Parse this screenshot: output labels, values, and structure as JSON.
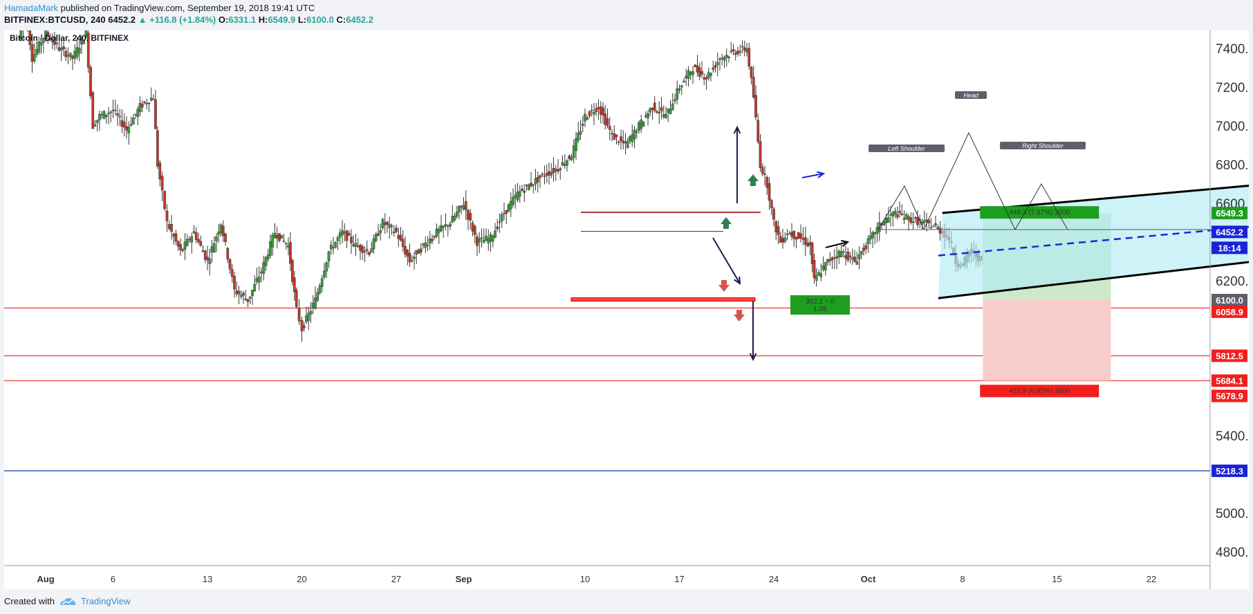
{
  "header": {
    "author": "HamadaMark",
    "published": "published on TradingView.com, September 19, 2018 19:41 UTC",
    "symbol_line": "BITFINEX:BTCUSD, 240",
    "last": "6452.2",
    "change": "▲ +116.8 (+1.84%)",
    "o_label": "O:",
    "o": "6331.1",
    "h_label": "H:",
    "h": "6549.9",
    "l_label": "L:",
    "l": "6100.0",
    "c_label": "C:",
    "c": "6452.2"
  },
  "footer": {
    "created_with": "Created with",
    "brand": "TradingView"
  },
  "chart_data": {
    "type": "candlestick",
    "title": "Bitcoin / Dollar, 240, BITFINEX",
    "ylim": [
      4700,
      7550
    ],
    "y_ticks": [
      "7400.0",
      "7200.0",
      "7000.0",
      "6800.0",
      "6600.0",
      "6200.0",
      "5400.0",
      "5000.0",
      "4800.0"
    ],
    "x_ticks": [
      "Aug",
      "6",
      "13",
      "20",
      "27",
      "Sep",
      "10",
      "17",
      "24",
      "Oct",
      "8",
      "15",
      "22"
    ],
    "x_tick_days": [
      0,
      5,
      12,
      19,
      26,
      31,
      40,
      47,
      54,
      61,
      68,
      75,
      82
    ],
    "price_path": [
      [
        -2,
        7450
      ],
      [
        -1.5,
        7600
      ],
      [
        -1,
        7350
      ],
      [
        0,
        7480
      ],
      [
        1,
        7400
      ],
      [
        2,
        7350
      ],
      [
        3,
        7480
      ],
      [
        3.5,
        7000
      ],
      [
        4,
        7050
      ],
      [
        5,
        7080
      ],
      [
        6,
        6980
      ],
      [
        7,
        7100
      ],
      [
        8,
        7150
      ],
      [
        8.3,
        6800
      ],
      [
        9,
        6500
      ],
      [
        10,
        6350
      ],
      [
        11,
        6450
      ],
      [
        12,
        6300
      ],
      [
        13,
        6500
      ],
      [
        14,
        6150
      ],
      [
        15,
        6100
      ],
      [
        16,
        6250
      ],
      [
        17,
        6450
      ],
      [
        18,
        6380
      ],
      [
        18.6,
        6050
      ],
      [
        19,
        5950
      ],
      [
        20,
        6100
      ],
      [
        21,
        6350
      ],
      [
        22,
        6450
      ],
      [
        23,
        6380
      ],
      [
        24,
        6350
      ],
      [
        25,
        6500
      ],
      [
        26,
        6450
      ],
      [
        27,
        6300
      ],
      [
        28,
        6380
      ],
      [
        29,
        6450
      ],
      [
        30,
        6500
      ],
      [
        31,
        6600
      ],
      [
        32,
        6400
      ],
      [
        33,
        6420
      ],
      [
        34,
        6550
      ],
      [
        35,
        6650
      ],
      [
        36,
        6700
      ],
      [
        37,
        6750
      ],
      [
        38,
        6780
      ],
      [
        39,
        6850
      ],
      [
        40,
        7050
      ],
      [
        41,
        7100
      ],
      [
        42,
        6950
      ],
      [
        43,
        6900
      ],
      [
        44,
        7000
      ],
      [
        45,
        7100
      ],
      [
        46,
        7050
      ],
      [
        47,
        7200
      ],
      [
        48,
        7300
      ],
      [
        49,
        7250
      ],
      [
        50,
        7350
      ],
      [
        51,
        7380
      ],
      [
        52,
        7400
      ],
      [
        52.5,
        7150
      ],
      [
        53,
        6800
      ],
      [
        53.5,
        6700
      ],
      [
        54,
        6500
      ],
      [
        54.5,
        6400
      ],
      [
        55,
        6450
      ],
      [
        56,
        6420
      ],
      [
        56.7,
        6380
      ],
      [
        57,
        6200
      ],
      [
        58,
        6300
      ],
      [
        59,
        6350
      ],
      [
        60,
        6300
      ],
      [
        61,
        6400
      ],
      [
        62,
        6500
      ],
      [
        63,
        6550
      ],
      [
        64,
        6520
      ],
      [
        65,
        6500
      ],
      [
        66,
        6480
      ],
      [
        67,
        6420
      ],
      [
        67.5,
        6300
      ],
      [
        68,
        6280
      ],
      [
        68.5,
        6350
      ],
      [
        69,
        6330
      ],
      [
        69.5,
        6300
      ],
      [
        70,
        6452.2
      ]
    ],
    "horizontal_lines": [
      {
        "price": 6058.9,
        "color": "#ef5350"
      },
      {
        "price": 5812.5,
        "color": "#ef5350"
      },
      {
        "price": 5684.1,
        "color": "#ef5350"
      },
      {
        "price": 5218.3,
        "color": "#3f51b5"
      }
    ],
    "price_labels": [
      {
        "text": "6549.3",
        "price": 6549.3,
        "color": "#1e9e1e"
      },
      {
        "text": "6452.2",
        "price": 6452.2,
        "color": "#1a23d6"
      },
      {
        "text": "18:14",
        "price": 6370,
        "color": "#1a23d6"
      },
      {
        "text": "6100.0",
        "price": 6100.0,
        "color": "#5d606b"
      },
      {
        "text": "6058.9",
        "price": 6040,
        "color": "#f21e1e"
      },
      {
        "text": "5812.5",
        "price": 5812.5,
        "color": "#f21e1e"
      },
      {
        "text": "5684.1",
        "price": 5684.1,
        "color": "#f21e1e"
      },
      {
        "text": "5678.9",
        "price": 5605,
        "color": "#f21e1e"
      },
      {
        "text": "5218.3",
        "price": 5218.3,
        "color": "#1a23d6"
      }
    ],
    "channel": {
      "upper": [
        [
          66.5,
          6550
        ],
        [
          102,
          6770
        ]
      ],
      "lower": [
        [
          66.2,
          6110
        ],
        [
          102,
          6400
        ]
      ],
      "mid": [
        [
          66.2,
          6330
        ],
        [
          102,
          6560
        ]
      ]
    },
    "long_position": {
      "day_start": 69.5,
      "day_end": 79,
      "entry": 6100.0,
      "target": 6549.3,
      "stop": 5684.1,
      "target_label": "449.3 (7.37%) 1000",
      "stop_label": "415.9 (6.82%) 1000",
      "ratio_label": "352.2 ~ 0",
      "ratio_label2": "1.08"
    },
    "pattern_labels": [
      "Left Shoulder",
      "Head",
      "Right Shoulder"
    ]
  }
}
